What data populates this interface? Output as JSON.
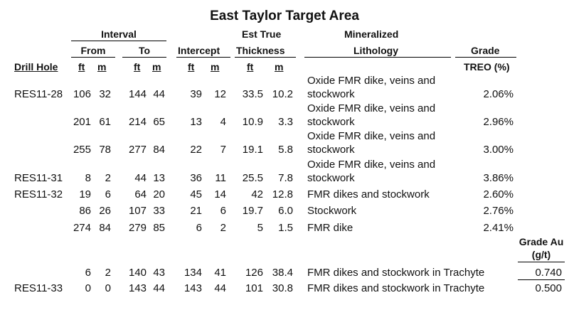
{
  "title": "East Taylor Target Area",
  "headers": {
    "interval": "Interval",
    "from": "From",
    "to": "To",
    "intercept": "Intercept",
    "est_true": "Est True",
    "thickness": "Thickness",
    "mineralized": "Mineralized",
    "lithology": "Lithology",
    "grade": "Grade",
    "drill_hole": "Drill Hole",
    "ft": "ft",
    "m": "m",
    "treo": "TREO (%)",
    "grade_au_1": "Grade Au",
    "grade_au_2": "(g/t)"
  },
  "rows": [
    {
      "hole": "RES11-28",
      "from_ft": "106",
      "from_m": "32",
      "to_ft": "144",
      "to_m": "44",
      "int_ft": "39",
      "int_m": "12",
      "th_ft": "33.5",
      "th_m": "10.2",
      "lith1": "Oxide FMR dike, veins and",
      "lith2": "stockwork",
      "grade": "2.06%"
    },
    {
      "hole": "",
      "from_ft": "201",
      "from_m": "61",
      "to_ft": "214",
      "to_m": "65",
      "int_ft": "13",
      "int_m": "4",
      "th_ft": "10.9",
      "th_m": "3.3",
      "lith1": "Oxide FMR dike, veins and",
      "lith2": "stockwork",
      "grade": "2.96%"
    },
    {
      "hole": "",
      "from_ft": "255",
      "from_m": "78",
      "to_ft": "277",
      "to_m": "84",
      "int_ft": "22",
      "int_m": "7",
      "th_ft": "19.1",
      "th_m": "5.8",
      "lith1": "Oxide FMR dike, veins and",
      "lith2": "stockwork",
      "grade": "3.00%"
    },
    {
      "hole": "RES11-31",
      "from_ft": "8",
      "from_m": "2",
      "to_ft": "44",
      "to_m": "13",
      "int_ft": "36",
      "int_m": "11",
      "th_ft": "25.5",
      "th_m": "7.8",
      "lith1": "Oxide FMR dike, veins and",
      "lith2": "stockwork",
      "grade": "3.86%"
    },
    {
      "hole": "RES11-32",
      "from_ft": "19",
      "from_m": "6",
      "to_ft": "64",
      "to_m": "20",
      "int_ft": "45",
      "int_m": "14",
      "th_ft": "42",
      "th_m": "12.8",
      "lith1": "",
      "lith2": "FMR dikes and stockwork",
      "grade": "2.60%"
    },
    {
      "hole": "",
      "from_ft": "86",
      "from_m": "26",
      "to_ft": "107",
      "to_m": "33",
      "int_ft": "21",
      "int_m": "6",
      "th_ft": "19.7",
      "th_m": "6.0",
      "lith1": "",
      "lith2": "Stockwork",
      "grade": "2.76%"
    },
    {
      "hole": "",
      "from_ft": "274",
      "from_m": "84",
      "to_ft": "279",
      "to_m": "85",
      "int_ft": "6",
      "int_m": "2",
      "th_ft": "5",
      "th_m": "1.5",
      "lith1": "",
      "lith2": "FMR dike",
      "grade": "2.41%"
    }
  ],
  "au_rows": [
    {
      "hole": "",
      "from_ft": "6",
      "from_m": "2",
      "to_ft": "140",
      "to_m": "43",
      "int_ft": "134",
      "int_m": "41",
      "th_ft": "126",
      "th_m": "38.4",
      "lith": "FMR dikes and stockwork in Trachyte",
      "grade_au": "0.740"
    },
    {
      "hole": "RES11-33",
      "from_ft": "0",
      "from_m": "0",
      "to_ft": "143",
      "to_m": "44",
      "int_ft": "143",
      "int_m": "44",
      "th_ft": "101",
      "th_m": "30.8",
      "lith": "FMR dikes and stockwork in Trachyte",
      "grade_au": "0.500"
    }
  ]
}
